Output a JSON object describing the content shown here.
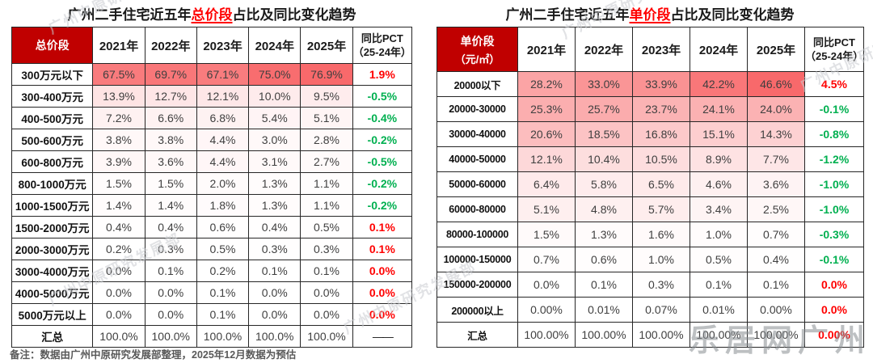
{
  "colors": {
    "header_bg": "#C00000",
    "header_text": "#FFFFFF",
    "heat_color": "#F8696B",
    "positive": "#FF0000",
    "negative": "#00B050",
    "value_text": "#3F3F3F",
    "title_highlight": "#FF0000",
    "note_text": "#595959",
    "watermark": "#C9CCD0"
  },
  "note": "备注：数据由广州中原研究发展部整理，2025年12月数据为预估",
  "watermarks": {
    "diagonal": "广州中原研究发展部",
    "brand": "乐居网广州"
  },
  "chart_data": [
    {
      "type": "table",
      "title_prefix": "广州二手住宅近五年",
      "title_highlight": "总价段",
      "title_suffix": "占比及同比变化趋势",
      "heat_max": 76.9,
      "header": {
        "segment": "总价段",
        "segment_unit": "",
        "years": [
          "2021年",
          "2022年",
          "2023年",
          "2024年",
          "2025年"
        ],
        "yoy_line1": "同比PCT",
        "yoy_line2": "（25-24年）"
      },
      "rows": [
        {
          "label": "300万元以下",
          "values": [
            "67.5%",
            "69.7%",
            "67.1%",
            "75.0%",
            "76.9%"
          ],
          "yoy": "1.9%",
          "sign": "pos"
        },
        {
          "label": "300-400万元",
          "values": [
            "13.9%",
            "12.7%",
            "12.1%",
            "10.0%",
            "9.5%"
          ],
          "yoy": "-0.5%",
          "sign": "neg"
        },
        {
          "label": "400-500万元",
          "values": [
            "7.2%",
            "6.6%",
            "6.8%",
            "5.4%",
            "5.1%"
          ],
          "yoy": "-0.4%",
          "sign": "neg"
        },
        {
          "label": "500-600万元",
          "values": [
            "3.8%",
            "3.8%",
            "4.4%",
            "3.0%",
            "2.8%"
          ],
          "yoy": "-0.2%",
          "sign": "neg"
        },
        {
          "label": "600-800万元",
          "values": [
            "3.9%",
            "3.6%",
            "4.4%",
            "3.1%",
            "2.7%"
          ],
          "yoy": "-0.5%",
          "sign": "neg"
        },
        {
          "label": "800-1000万元",
          "values": [
            "1.5%",
            "1.5%",
            "2.0%",
            "1.3%",
            "1.1%"
          ],
          "yoy": "-0.2%",
          "sign": "neg"
        },
        {
          "label": "1000-1500万元",
          "values": [
            "1.4%",
            "1.4%",
            "1.8%",
            "1.3%",
            "1.1%"
          ],
          "yoy": "-0.2%",
          "sign": "neg"
        },
        {
          "label": "1500-2000万元",
          "values": [
            "0.4%",
            "0.4%",
            "0.6%",
            "0.4%",
            "0.5%"
          ],
          "yoy": "0.1%",
          "sign": "pos"
        },
        {
          "label": "2000-3000万元",
          "values": [
            "0.2%",
            "0.3%",
            "0.5%",
            "0.3%",
            "0.3%"
          ],
          "yoy": "0.1%",
          "sign": "pos"
        },
        {
          "label": "3000-4000万元",
          "values": [
            "0.0%",
            "0.1%",
            "0.2%",
            "0.1%",
            "0.1%"
          ],
          "yoy": "0.0%",
          "sign": "pos"
        },
        {
          "label": "4000-5000万元",
          "values": [
            "0.0%",
            "0.0%",
            "0.1%",
            "0.0%",
            "0.0%"
          ],
          "yoy": "0.0%",
          "sign": "pos"
        },
        {
          "label": "5000万元以上",
          "values": [
            "0.0%",
            "0.0%",
            "0.1%",
            "0.0%",
            "0.0%"
          ],
          "yoy": "0.0%",
          "sign": "pos"
        },
        {
          "label": "汇总",
          "values": [
            "100.0%",
            "100.0%",
            "100.0%",
            "100.0%",
            "100.0%"
          ],
          "yoy": "——",
          "sign": "none",
          "total": true
        }
      ]
    },
    {
      "type": "table",
      "title_prefix": "广州二手住宅近五年",
      "title_highlight": "单价段",
      "title_suffix": "占比及同比变化趋势",
      "heat_max": 46.6,
      "header": {
        "segment": "单价段",
        "segment_unit": "（元/㎡）",
        "years": [
          "2021年",
          "2022年",
          "2023年",
          "2024年",
          "2025年"
        ],
        "yoy_line1": "同比PCT",
        "yoy_line2": "（25-24年）"
      },
      "rows": [
        {
          "label": "20000以下",
          "values": [
            "28.2%",
            "33.0%",
            "33.9%",
            "42.2%",
            "46.6%"
          ],
          "yoy": "4.5%",
          "sign": "pos"
        },
        {
          "label": "20000-30000",
          "values": [
            "25.3%",
            "25.7%",
            "23.7%",
            "24.1%",
            "24.0%"
          ],
          "yoy": "-0.1%",
          "sign": "neg"
        },
        {
          "label": "30000-40000",
          "values": [
            "20.6%",
            "18.5%",
            "16.8%",
            "15.1%",
            "14.3%"
          ],
          "yoy": "-0.8%",
          "sign": "neg"
        },
        {
          "label": "40000-50000",
          "values": [
            "12.1%",
            "10.4%",
            "10.5%",
            "8.9%",
            "7.7%"
          ],
          "yoy": "-1.2%",
          "sign": "neg"
        },
        {
          "label": "50000-60000",
          "values": [
            "6.4%",
            "5.8%",
            "6.5%",
            "4.6%",
            "3.6%"
          ],
          "yoy": "-1.0%",
          "sign": "neg"
        },
        {
          "label": "60000-80000",
          "values": [
            "5.1%",
            "4.8%",
            "5.7%",
            "3.4%",
            "2.5%"
          ],
          "yoy": "-1.0%",
          "sign": "neg"
        },
        {
          "label": "80000-100000",
          "values": [
            "1.5%",
            "1.3%",
            "1.6%",
            "1.0%",
            "0.7%"
          ],
          "yoy": "-0.3%",
          "sign": "neg"
        },
        {
          "label": "100000-150000",
          "values": [
            "0.7%",
            "0.6%",
            "1.0%",
            "0.5%",
            "0.4%"
          ],
          "yoy": "-0.1%",
          "sign": "neg"
        },
        {
          "label": "150000-200000",
          "values": [
            "0.0%",
            "0.1%",
            "0.3%",
            "0.1%",
            "0.1%"
          ],
          "yoy": "0.0%",
          "sign": "pos"
        },
        {
          "label": "200000以上",
          "values": [
            "0.00%",
            "0.01%",
            "0.07%",
            "0.01%",
            "0.00%"
          ],
          "yoy": "0.0%",
          "sign": "pos"
        },
        {
          "label": "汇总",
          "values": [
            "100.00%",
            "100.00%",
            "100.00%",
            "100.00%",
            "100.00%"
          ],
          "yoy": "0.00%",
          "sign": "pos",
          "total": true
        }
      ]
    }
  ]
}
